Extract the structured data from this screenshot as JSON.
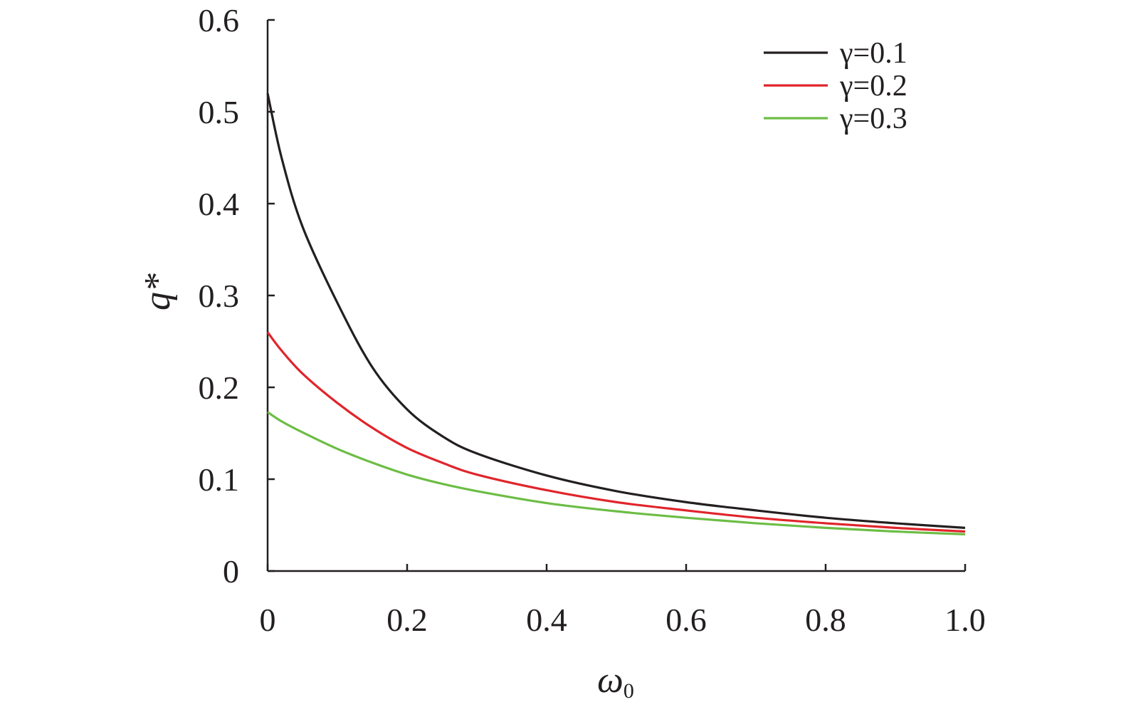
{
  "chart_data": {
    "type": "line",
    "title": "",
    "xlabel": "ω0",
    "xlabel_main": "ω",
    "xlabel_sub": "0",
    "ylabel": "q*",
    "xlim": [
      0,
      1.0
    ],
    "ylim": [
      0,
      0.6
    ],
    "x_ticks": [
      0,
      0.2,
      0.4,
      0.6,
      0.8,
      1.0
    ],
    "x_tick_labels": [
      "0",
      "0.2",
      "0.4",
      "0.6",
      "0.8",
      "1.0"
    ],
    "y_ticks": [
      0,
      0.1,
      0.2,
      0.3,
      0.4,
      0.5,
      0.6
    ],
    "y_tick_labels": [
      "0",
      "0.1",
      "0.2",
      "0.3",
      "0.4",
      "0.5",
      "0.6"
    ],
    "grid": false,
    "legend_position": "top-right",
    "x": [
      0,
      0.02,
      0.05,
      0.1,
      0.15,
      0.2,
      0.25,
      0.3,
      0.4,
      0.5,
      0.6,
      0.7,
      0.8,
      0.9,
      1.0
    ],
    "series": [
      {
        "name": "γ=0.1",
        "color": "#231f20",
        "values": [
          0.52,
          0.45,
          0.375,
          0.292,
          0.222,
          0.176,
          0.147,
          0.128,
          0.104,
          0.087,
          0.075,
          0.066,
          0.058,
          0.052,
          0.047
        ]
      },
      {
        "name": "γ=0.2",
        "color": "#e0252b",
        "values": [
          0.26,
          0.24,
          0.215,
          0.183,
          0.156,
          0.134,
          0.118,
          0.105,
          0.088,
          0.075,
          0.066,
          0.058,
          0.052,
          0.047,
          0.043
        ]
      },
      {
        "name": "γ=0.3",
        "color": "#6cbd45",
        "values": [
          0.173,
          0.163,
          0.151,
          0.133,
          0.118,
          0.105,
          0.095,
          0.087,
          0.074,
          0.065,
          0.058,
          0.052,
          0.047,
          0.043,
          0.04
        ]
      }
    ]
  }
}
